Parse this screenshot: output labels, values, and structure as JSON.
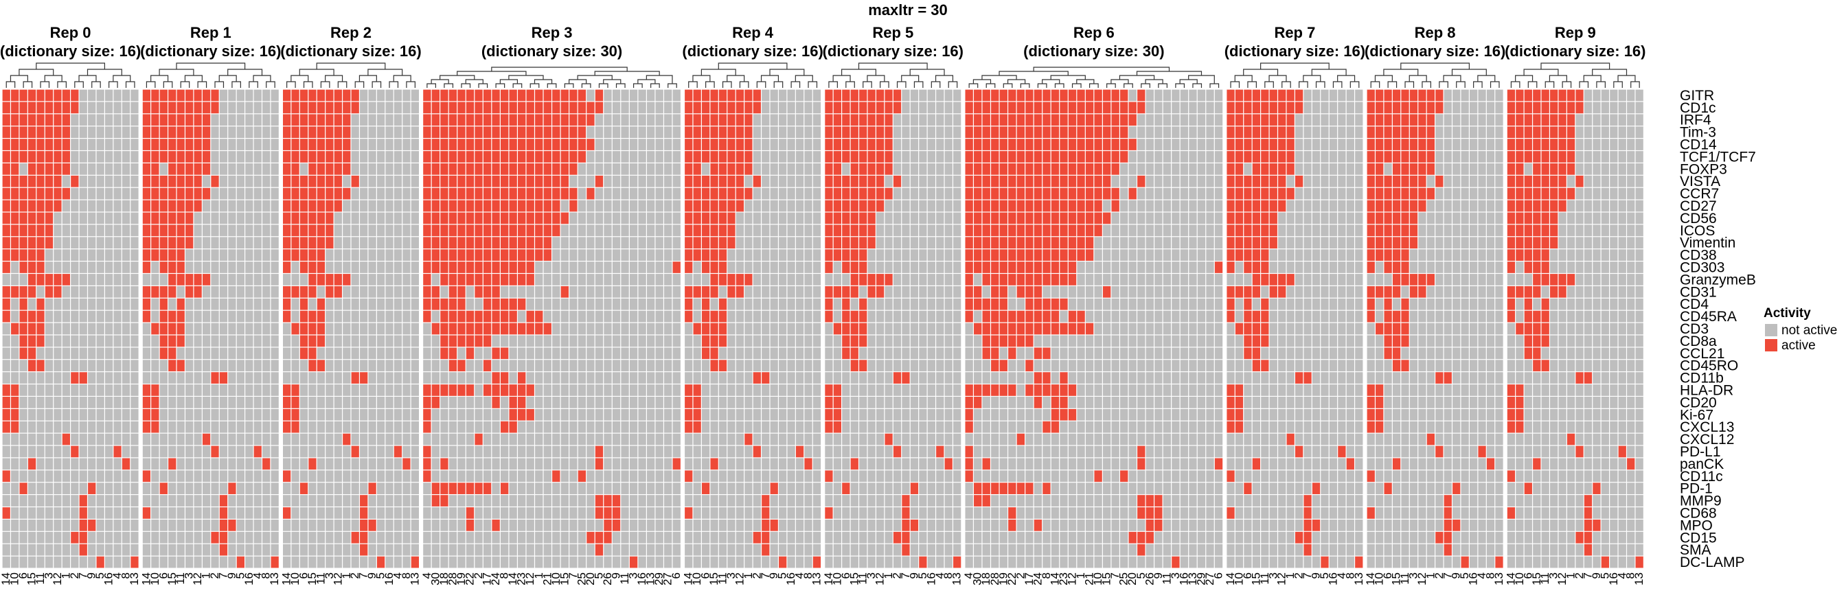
{
  "chart_data": {
    "type": "heatmap",
    "title": "maxltr = 30",
    "rows": [
      "GITR",
      "CD1c",
      "IRF4",
      "Tim-3",
      "CD14",
      "TCF1/TCF7",
      "FOXP3",
      "VISTA",
      "CCR7",
      "CD27",
      "CD56",
      "ICOS",
      "Vimentin",
      "CD38",
      "CD303",
      "GranzymeB",
      "CD31",
      "CD4",
      "CD45RA",
      "CD3",
      "CD8a",
      "CCL21",
      "CD45RO",
      "CD11b",
      "HLA-DR",
      "CD20",
      "Ki-67",
      "CXCL13",
      "CXCL12",
      "PD-L1",
      "panCK",
      "CD11c",
      "PD-1",
      "MMP9",
      "CD68",
      "MPO",
      "CD15",
      "SMA",
      "DC-LAMP"
    ],
    "legend": {
      "title": "Activity",
      "placement": "right",
      "items": [
        {
          "label": "not active",
          "color": "#bebebe"
        },
        {
          "label": "active",
          "color": "#ee4a38"
        }
      ]
    },
    "panels": [
      {
        "title": "Rep 0",
        "subtitle": "(dictionary size: 16)",
        "size": 16,
        "columns": [
          "14",
          "10",
          "6",
          "15",
          "11",
          "3",
          "12",
          "1",
          "2",
          "7",
          "9",
          "5",
          "16",
          "4",
          "8",
          "13"
        ]
      },
      {
        "title": "Rep 1",
        "subtitle": "(dictionary size: 16)",
        "size": 16,
        "columns": [
          "14",
          "10",
          "6",
          "15",
          "11",
          "3",
          "12",
          "1",
          "2",
          "7",
          "9",
          "5",
          "16",
          "4",
          "8",
          "13"
        ]
      },
      {
        "title": "Rep 2",
        "subtitle": "(dictionary size: 16)",
        "size": 16,
        "columns": [
          "14",
          "10",
          "6",
          "15",
          "11",
          "3",
          "12",
          "1",
          "2",
          "7",
          "9",
          "5",
          "16",
          "4",
          "8",
          "13"
        ]
      },
      {
        "title": "Rep 3",
        "subtitle": "(dictionary size: 30)",
        "size": 30,
        "columns": [
          "4",
          "30",
          "18",
          "28",
          "19",
          "22",
          "2",
          "17",
          "24",
          "8",
          "14",
          "23",
          "12",
          "1",
          "21",
          "10",
          "15",
          "7",
          "25",
          "20",
          "5",
          "26",
          "9",
          "11",
          "3",
          "16",
          "13",
          "29",
          "27",
          "6"
        ]
      },
      {
        "title": "Rep 4",
        "subtitle": "(dictionary size: 16)",
        "size": 16,
        "columns": [
          "14",
          "10",
          "6",
          "15",
          "11",
          "3",
          "12",
          "1",
          "2",
          "7",
          "9",
          "5",
          "16",
          "4",
          "8",
          "13"
        ]
      },
      {
        "title": "Rep 5",
        "subtitle": "(dictionary size: 16)",
        "size": 16,
        "columns": [
          "14",
          "10",
          "6",
          "15",
          "11",
          "3",
          "12",
          "1",
          "2",
          "7",
          "9",
          "5",
          "16",
          "4",
          "8",
          "13"
        ]
      },
      {
        "title": "Rep 6",
        "subtitle": "(dictionary size: 30)",
        "size": 30,
        "columns": [
          "4",
          "30",
          "18",
          "28",
          "19",
          "22",
          "2",
          "17",
          "24",
          "8",
          "14",
          "23",
          "12",
          "1",
          "21",
          "10",
          "15",
          "7",
          "25",
          "20",
          "5",
          "26",
          "9",
          "11",
          "3",
          "16",
          "13",
          "29",
          "27",
          "6"
        ]
      },
      {
        "title": "Rep 7",
        "subtitle": "(dictionary size: 16)",
        "size": 16,
        "columns": [
          "14",
          "10",
          "6",
          "15",
          "11",
          "3",
          "12",
          "1",
          "2",
          "7",
          "9",
          "5",
          "16",
          "4",
          "8",
          "13"
        ]
      },
      {
        "title": "Rep 8",
        "subtitle": "(dictionary size: 16)",
        "size": 16,
        "columns": [
          "14",
          "10",
          "6",
          "15",
          "11",
          "3",
          "12",
          "1",
          "2",
          "7",
          "9",
          "5",
          "16",
          "4",
          "8",
          "13"
        ]
      },
      {
        "title": "Rep 9",
        "subtitle": "(dictionary size: 16)",
        "size": 16,
        "columns": [
          "14",
          "10",
          "6",
          "15",
          "11",
          "3",
          "12",
          "1",
          "2",
          "7",
          "9",
          "5",
          "16",
          "4",
          "8",
          "13"
        ]
      }
    ],
    "patterns": {
      "16": [
        "1111111110000000",
        "1111111110000000",
        "1111111100000000",
        "1111111100000000",
        "1111111100000000",
        "1111111100000000",
        "1101111100000000",
        "1111111010000000",
        "1111111100000000",
        "1111111000000000",
        "1111110000000000",
        "1111110000000000",
        "1111110000000000",
        "1111100000000000",
        "1011100000000000",
        "0001111100000000",
        "1111011000000000",
        "1010100000000000",
        "1011100000000000",
        "0111100000000000",
        "0011100000000000",
        "0011000000000000",
        "0001100000000000",
        "0000000011000000",
        "1100000000000000",
        "1100000000000000",
        "1100000000000000",
        "1100000000000000",
        "0000000100000000",
        "0000000010000100",
        "0001000000000010",
        "1000000000000000",
        "0010000000100000",
        "0000000001000000",
        "1000000001000000",
        "0000000001100000",
        "0000000011000000",
        "0000000001000000",
        "0000000000010001"
      ],
      "30": [
        "111111111111111111101000000000",
        "111111111111111111111000000000",
        "111111111111111111110000000000",
        "111111111111111111100000000000",
        "111111111111111111110000000000",
        "111111111111111111100000000000",
        "111111111111111111000000000000",
        "111111111111111110001000000000",
        "111111111111111111010000000000",
        "111111111111111101000000000000",
        "111111111111111110000000000000",
        "111111111111111100000000000000",
        "111111111111111000000000000000",
        "111111111111111000000000000000",
        "111111111111100000000000000001",
        "101111111111100000000000000000",
        "110110111000000010000000000000",
        "111110011111000000000000000000",
        "101111111110110000000000000000",
        "011111111111111000000000000000",
        "001111110000000000000000000000",
        "001101001100000000000000000000",
        "000110010000000000000000000000",
        "000000001101000000000000000000",
        "111111011111100000000000000000",
        "110000001011000000000000000000",
        "100000000011100000000000000000",
        "100000000110000000000000000000",
        "000000100000000000000000000000",
        "100000000000000000001000000000",
        "101000000000000000001000000001",
        "100000000000000100100000000000",
        "011111110100000000000000000000",
        "011000000000000000001110000000",
        "000001000000000000001110000000",
        "000001001000000000000110000000",
        "000000000000000000011100000000",
        "000000000000000000001000000000",
        "000000000000000000000000100000"
      ]
    }
  }
}
